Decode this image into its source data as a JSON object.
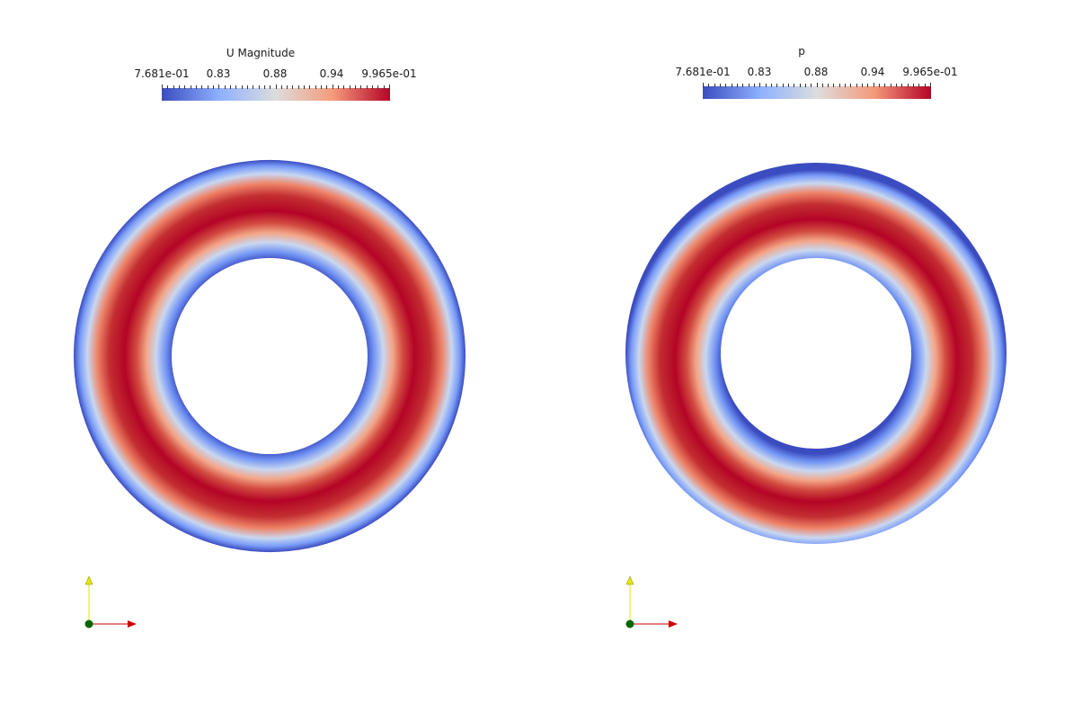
{
  "views": [
    {
      "legend": {
        "title": "U Magnitude",
        "ticks": [
          "7.681e-01",
          "0.83",
          "0.88",
          "0.94",
          "9.965e-01"
        ]
      }
    },
    {
      "legend": {
        "title": "p",
        "ticks": [
          "7.681e-01",
          "0.83",
          "0.88",
          "0.94",
          "9.965e-01"
        ]
      }
    }
  ],
  "colormap": {
    "low": "#3b4cc0",
    "mid": "#dddddd",
    "high": "#b40426"
  },
  "axes_colors": {
    "x": "#cc0000",
    "y": "#e6e600",
    "origin": "#006600"
  }
}
